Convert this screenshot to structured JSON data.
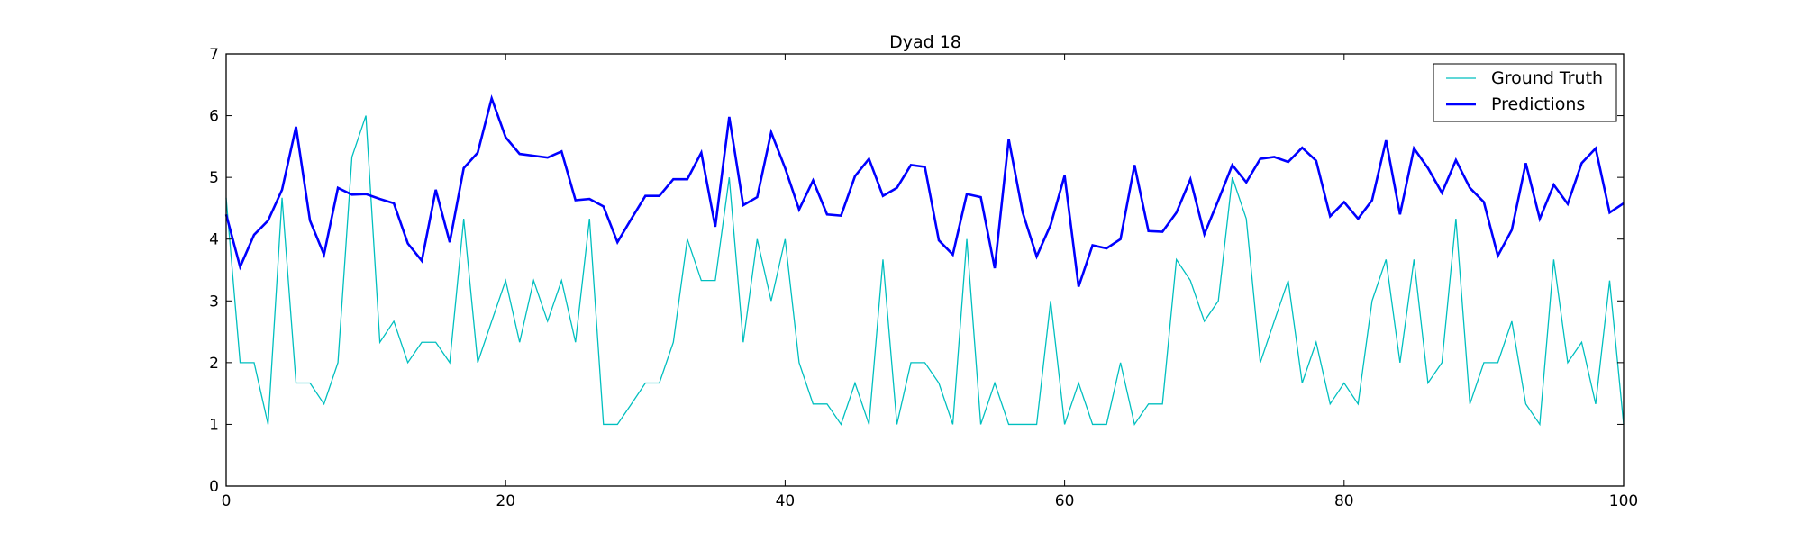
{
  "chart_data": {
    "type": "line",
    "title": "Dyad 18",
    "xlabel": "",
    "ylabel": "",
    "xlim": [
      0,
      100
    ],
    "ylim": [
      0,
      7
    ],
    "xticks": [
      "0",
      "20",
      "40",
      "60",
      "80",
      "100"
    ],
    "yticks": [
      "0",
      "1",
      "2",
      "3",
      "4",
      "5",
      "6",
      "7"
    ],
    "grid": false,
    "legend_position": "top-right",
    "series": [
      {
        "name": "Ground Truth",
        "color": "#00bfbf",
        "x": [
          0,
          1,
          2,
          3,
          4,
          5,
          6,
          7,
          8,
          9,
          10,
          11,
          12,
          13,
          14,
          15,
          16,
          17,
          18,
          19,
          20,
          21,
          22,
          23,
          24,
          25,
          26,
          27,
          28,
          29,
          30,
          31,
          32,
          33,
          34,
          35,
          36,
          37,
          38,
          39,
          40,
          41,
          42,
          43,
          44,
          45,
          46,
          47,
          48,
          49,
          50,
          51,
          52,
          53,
          54,
          55,
          56,
          57,
          58,
          59,
          60,
          61,
          62,
          63,
          64,
          65,
          66,
          67,
          68,
          69,
          70,
          71,
          72,
          73,
          74,
          75,
          76,
          77,
          78,
          79,
          80,
          81,
          82,
          83,
          84,
          85,
          86,
          87,
          88,
          89,
          90,
          91,
          92,
          93,
          94,
          95,
          96,
          97,
          98,
          99,
          100
        ],
        "values": [
          4.67,
          2.0,
          2.0,
          1.0,
          4.67,
          1.67,
          1.67,
          1.33,
          2.0,
          5.33,
          6.0,
          2.33,
          2.67,
          2.0,
          2.33,
          2.33,
          2.0,
          4.33,
          2.0,
          2.67,
          3.33,
          2.33,
          3.33,
          2.67,
          3.33,
          2.33,
          4.33,
          1.0,
          1.0,
          1.33,
          1.67,
          1.67,
          2.33,
          4.0,
          3.33,
          3.33,
          5.0,
          2.33,
          4.0,
          3.0,
          4.0,
          2.0,
          1.33,
          1.33,
          1.0,
          1.67,
          1.0,
          3.67,
          1.0,
          2.0,
          2.0,
          1.67,
          1.0,
          4.0,
          1.0,
          1.67,
          1.0,
          1.0,
          1.0,
          3.0,
          1.0,
          1.67,
          1.0,
          1.0,
          2.0,
          1.0,
          1.33,
          1.33,
          3.67,
          3.33,
          2.67,
          3.0,
          5.0,
          4.33,
          2.0,
          2.67,
          3.33,
          1.67,
          2.33,
          1.33,
          1.67,
          1.33,
          3.0,
          3.67,
          2.0,
          3.67,
          1.67,
          2.0,
          4.33,
          1.33,
          2.0,
          2.0,
          2.67,
          1.33,
          1.0,
          3.67,
          2.0,
          2.33,
          1.33,
          3.33,
          1.0
        ]
      },
      {
        "name": "Predictions",
        "color": "#0000ff",
        "x": [
          0,
          1,
          2,
          3,
          4,
          5,
          6,
          7,
          8,
          9,
          10,
          11,
          12,
          13,
          14,
          15,
          16,
          17,
          18,
          19,
          20,
          21,
          22,
          23,
          24,
          25,
          26,
          27,
          28,
          29,
          30,
          31,
          32,
          33,
          34,
          35,
          36,
          37,
          38,
          39,
          40,
          41,
          42,
          43,
          44,
          45,
          46,
          47,
          48,
          49,
          50,
          51,
          52,
          53,
          54,
          55,
          56,
          57,
          58,
          59,
          60,
          61,
          62,
          63,
          64,
          65,
          66,
          67,
          68,
          69,
          70,
          71,
          72,
          73,
          74,
          75,
          76,
          77,
          78,
          79,
          80,
          81,
          82,
          83,
          84,
          85,
          86,
          87,
          88,
          89,
          90,
          91,
          92,
          93,
          94,
          95,
          96,
          97,
          98,
          99,
          100
        ],
        "values": [
          4.4,
          3.55,
          4.07,
          4.3,
          4.8,
          5.82,
          4.3,
          3.75,
          4.83,
          4.72,
          4.73,
          4.65,
          4.58,
          3.93,
          3.65,
          4.8,
          3.95,
          5.15,
          5.4,
          6.28,
          5.65,
          5.38,
          5.35,
          5.32,
          5.42,
          4.63,
          4.65,
          4.53,
          3.95,
          4.33,
          4.7,
          4.7,
          4.97,
          4.97,
          5.4,
          4.2,
          5.98,
          4.55,
          4.68,
          5.73,
          5.15,
          4.48,
          4.95,
          4.4,
          4.38,
          5.02,
          5.3,
          4.7,
          4.83,
          5.2,
          5.17,
          3.98,
          3.75,
          4.73,
          4.68,
          3.53,
          5.62,
          4.43,
          3.72,
          4.23,
          5.03,
          3.23,
          3.9,
          3.85,
          4.0,
          5.2,
          4.13,
          4.12,
          4.43,
          4.97,
          4.08,
          4.63,
          5.2,
          4.92,
          5.3,
          5.33,
          5.25,
          5.48,
          5.27,
          4.37,
          4.6,
          4.33,
          4.63,
          5.6,
          4.4,
          5.47,
          5.15,
          4.75,
          5.28,
          4.83,
          4.6,
          3.73,
          4.15,
          5.23,
          4.33,
          4.88,
          4.57,
          5.23,
          5.47,
          4.43,
          4.58
        ]
      }
    ]
  }
}
